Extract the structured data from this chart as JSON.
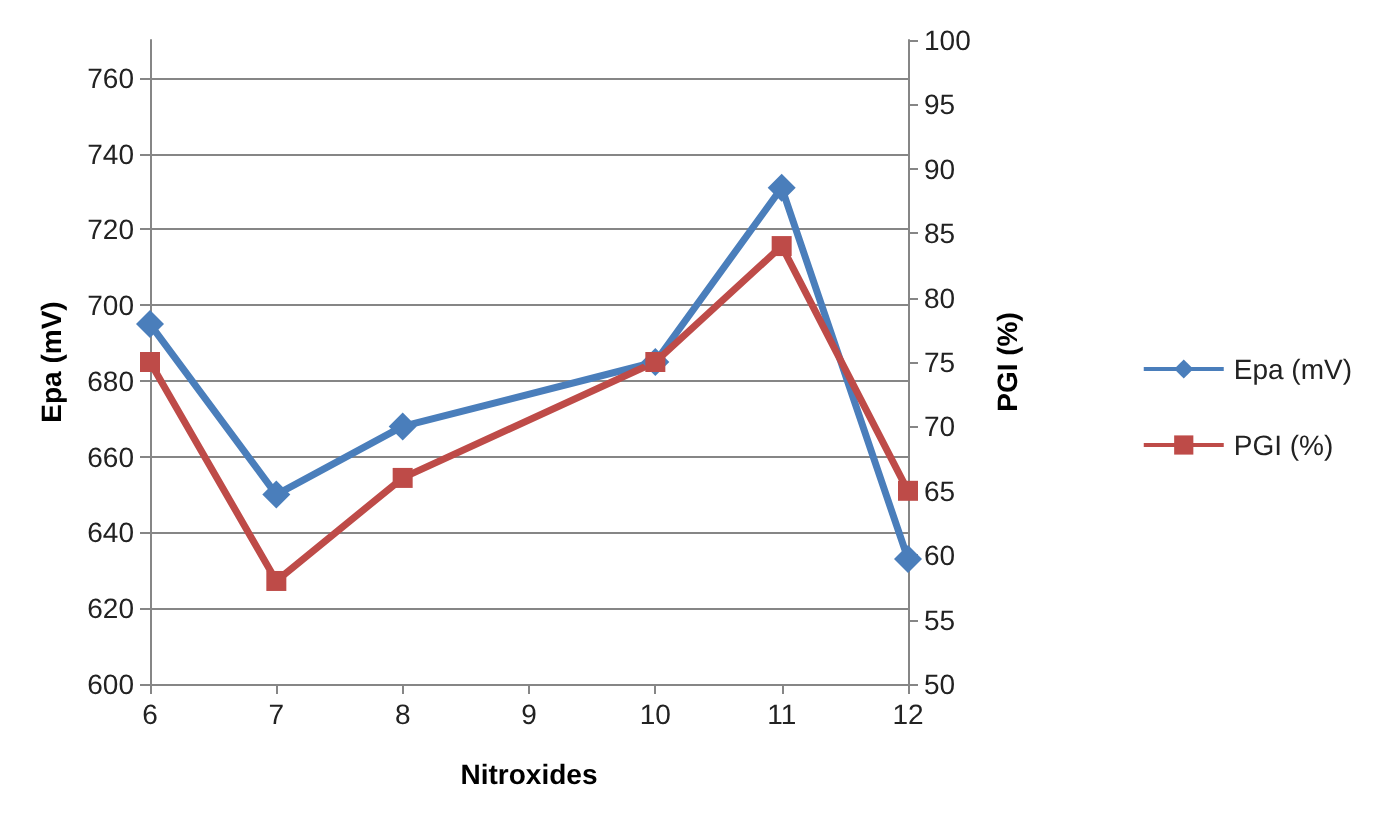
{
  "chart_data": {
    "type": "line",
    "xlabel": "Nitroxides",
    "ylabel": "Epa (mV)",
    "y2label": "PGI (%)",
    "categories": [
      "6",
      "7",
      "8",
      "9",
      "10",
      "11",
      "12"
    ],
    "series": [
      {
        "name": "Epa (mV)",
        "color": "#4a7ebb",
        "values": [
          695,
          650,
          668,
          null,
          685,
          731,
          633
        ],
        "marker": "diamond"
      },
      {
        "name": "PGI (%)",
        "color": "#be4b48",
        "values": [
          75,
          58,
          66,
          null,
          75,
          84,
          65
        ],
        "axis": "y2",
        "marker": "square"
      }
    ],
    "ylim": [
      600,
      770
    ],
    "yticks": [
      600,
      620,
      640,
      660,
      680,
      700,
      720,
      740,
      760
    ],
    "y2lim": [
      50,
      100
    ],
    "y2ticks": [
      50,
      55,
      60,
      65,
      70,
      75,
      80,
      85,
      90,
      95,
      100
    ],
    "grid": "y",
    "legend": "right",
    "line_style": "solid"
  }
}
